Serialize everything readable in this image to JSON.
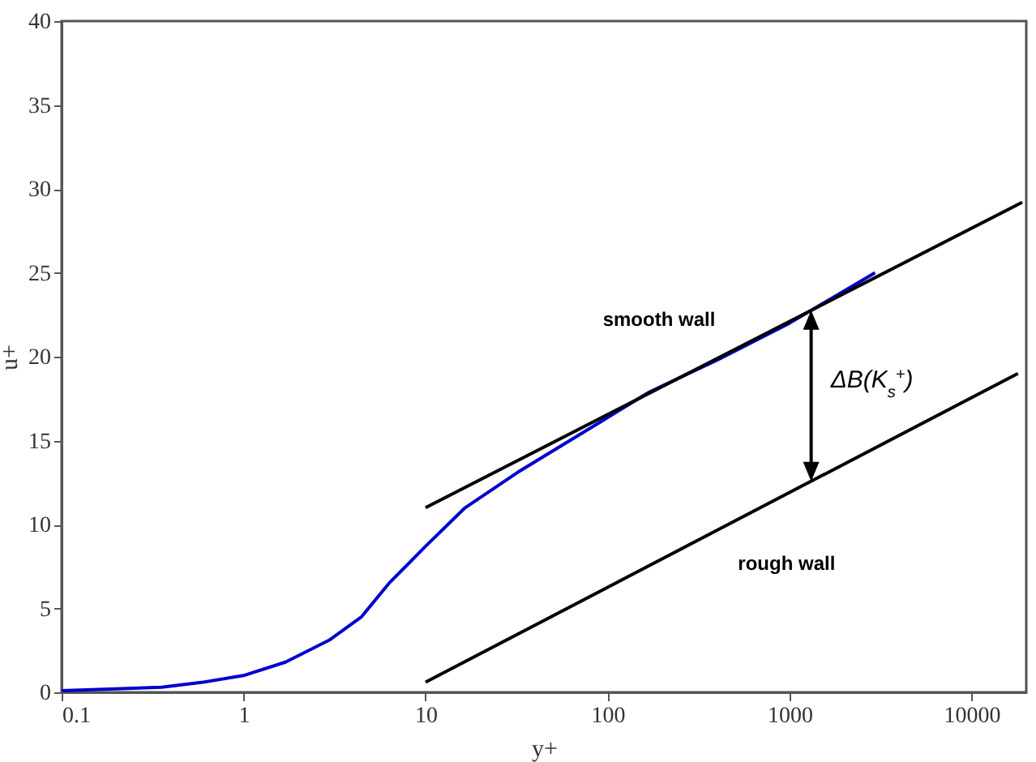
{
  "chart_data": {
    "type": "line",
    "xlabel": "y+",
    "ylabel": "u+",
    "log": "x",
    "xlim": [
      0.1,
      20000
    ],
    "xticks": [
      0.1,
      1,
      10,
      100,
      1000,
      10000
    ],
    "ylim": [
      0,
      40
    ],
    "yticks": [
      0,
      5,
      10,
      15,
      20,
      25,
      30,
      35,
      40
    ],
    "grid": false,
    "series": [
      {
        "color": "#0000cc",
        "x": [
          0.1,
          0.2,
          0.355,
          0.6,
          1,
          1.7,
          2.95,
          4.45,
          6.3,
          10,
          16.5,
          32,
          91,
          170,
          400,
          1000,
          2950
        ],
        "values": [
          0.1,
          0.2,
          0.3,
          0.6,
          1.0,
          1.8,
          3.1,
          4.5,
          6.5,
          8.7,
          11,
          13.1,
          16.1,
          17.9,
          19.8,
          22.0,
          25.0
        ]
      },
      {
        "name": "smooth wall",
        "color": "#000000",
        "x": [
          10,
          19000
        ],
        "values": [
          11,
          29.2
        ]
      },
      {
        "name": "rough wall",
        "color": "#000000",
        "x": [
          10,
          18000
        ],
        "values": [
          0.6,
          19.0
        ]
      }
    ],
    "annotations": [
      "ΔB(K$_{s}$$^{+}$)"
    ]
  }
}
